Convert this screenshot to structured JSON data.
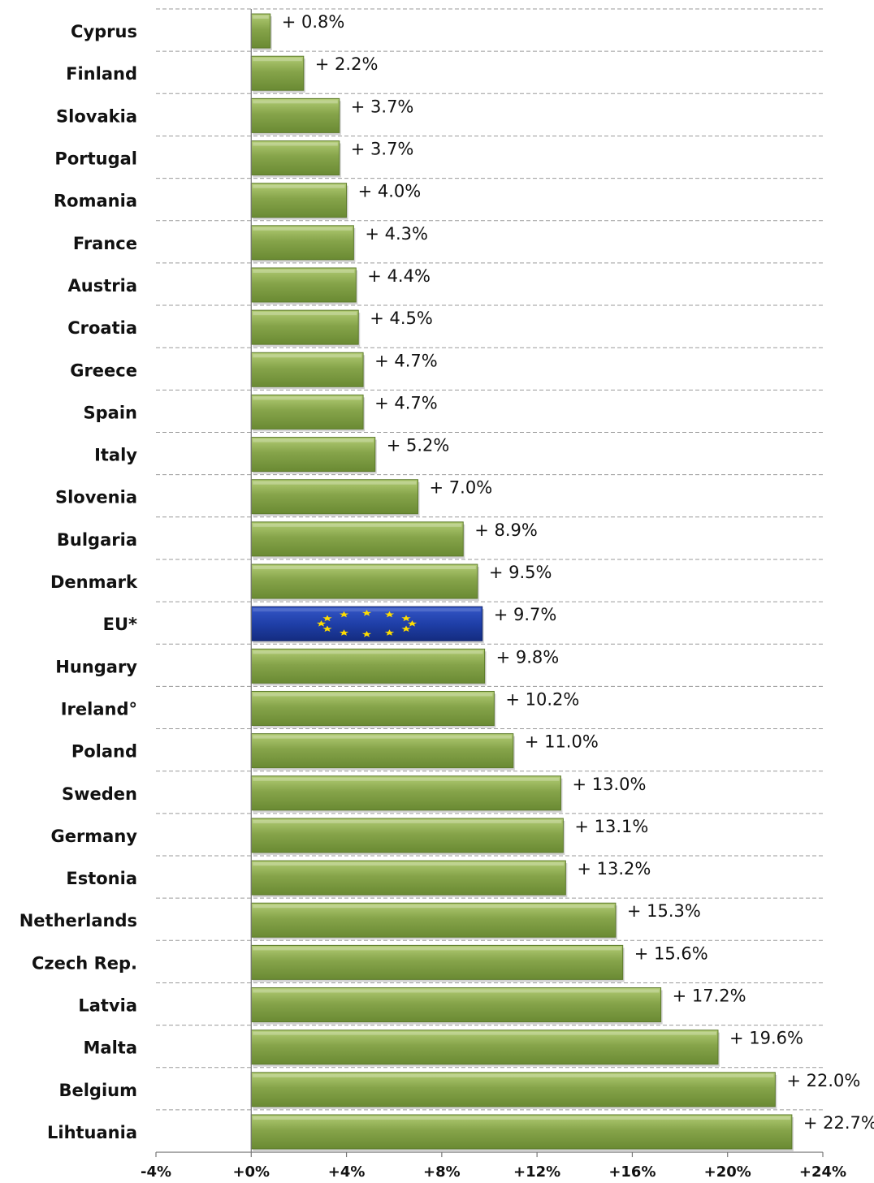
{
  "chart_data": {
    "type": "bar",
    "orientation": "horizontal",
    "categories": [
      "Cyprus",
      "Finland",
      "Slovakia",
      "Portugal",
      "Romania",
      "France",
      "Austria",
      "Croatia",
      "Greece",
      "Spain",
      "Italy",
      "Slovenia",
      "Bulgaria",
      "Denmark",
      "EU*",
      "Hungary",
      "Ireland°",
      "Poland",
      "Sweden",
      "Germany",
      "Estonia",
      "Netherlands",
      "Czech Rep.",
      "Latvia",
      "Malta",
      "Belgium",
      "Lihtuania"
    ],
    "values": [
      0.8,
      2.2,
      3.7,
      3.7,
      4.0,
      4.3,
      4.4,
      4.5,
      4.7,
      4.7,
      5.2,
      7.0,
      8.9,
      9.5,
      9.7,
      9.8,
      10.2,
      11.0,
      13.0,
      13.1,
      13.2,
      15.3,
      15.6,
      17.2,
      19.6,
      22.0,
      22.7
    ],
    "value_labels": [
      "+ 0.8%",
      "+ 2.2%",
      "+ 3.7%",
      "+ 3.7%",
      "+ 4.0%",
      "+ 4.3%",
      "+ 4.4%",
      "+ 4.5%",
      "+ 4.7%",
      "+ 4.7%",
      "+ 5.2%",
      "+ 7.0%",
      "+ 8.9%",
      "+ 9.5%",
      "+ 9.7%",
      "+ 9.8%",
      "+ 10.2%",
      "+ 11.0%",
      "+ 13.0%",
      "+ 13.1%",
      "+ 13.2%",
      "+ 15.3%",
      "+ 15.6%",
      "+ 17.2%",
      "+ 19.6%",
      "+ 22.0%",
      "+ 22.7%"
    ],
    "highlight_category": "EU*",
    "xlim": [
      -4,
      24
    ],
    "x_ticks": [
      -4,
      0,
      4,
      8,
      12,
      16,
      20,
      24
    ],
    "x_tick_labels": [
      "-4%",
      "+0%",
      "+4%",
      "+8%",
      "+12%",
      "+16%",
      "+20%",
      "+24%"
    ],
    "title": "",
    "xlabel": "",
    "ylabel": "",
    "grid": "horizontal dashed",
    "legend": "none",
    "colors": {
      "bar_fill": "#82a046",
      "bar_highlight": "#b2cc74",
      "bar_shadow": "#5c7a2a",
      "eu_fill": "#1f3fa8",
      "eu_star": "#ffdd00",
      "grid": "#9a9a9a",
      "text": "#111111"
    }
  }
}
